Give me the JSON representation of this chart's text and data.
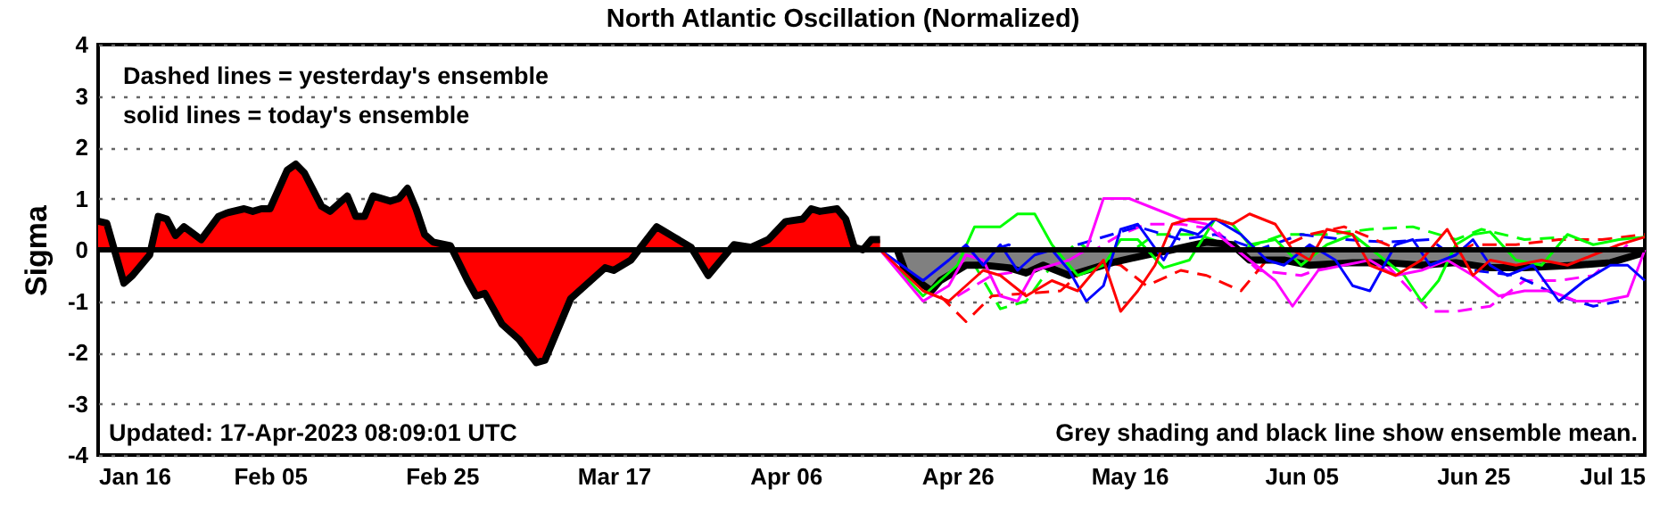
{
  "chart_data": {
    "type": "area",
    "title": "North Atlantic Oscillation (Normalized)",
    "ylabel": "Sigma",
    "xlim": [
      "--01-16",
      "--07-15"
    ],
    "xticks": [
      {
        "value": "--01-16",
        "label": "Jan 16"
      },
      {
        "value": "--02-05",
        "label": "Feb 05"
      },
      {
        "value": "--02-25",
        "label": "Feb 25"
      },
      {
        "value": "--03-17",
        "label": "Mar 17"
      },
      {
        "value": "--04-06",
        "label": "Apr 06"
      },
      {
        "value": "--04-26",
        "label": "Apr 26"
      },
      {
        "value": "--05-16",
        "label": "May 16"
      },
      {
        "value": "--06-05",
        "label": "Jun 05"
      },
      {
        "value": "--06-25",
        "label": "Jun 25"
      },
      {
        "value": "--07-15",
        "label": "Jul 15"
      }
    ],
    "ylim": [
      -4,
      4
    ],
    "yticks": [
      -4,
      -3,
      -2,
      -1,
      0,
      1,
      2,
      3,
      4
    ],
    "grid": "y",
    "ref_lines": [
      {
        "axis": "y",
        "value": 0,
        "color": "#000000"
      }
    ],
    "annotations": [
      "Dashed lines = yesterday's ensemble",
      "solid lines = today's ensemble",
      "Updated: 17-Apr-2023 08:09:01 UTC",
      "Grey shading and black line show ensemble mean."
    ],
    "series": [
      {
        "type": "area",
        "color": "#ff0000",
        "x": [
          "--01-16",
          "--01-17",
          "--01-19",
          "--01-20",
          "--01-22",
          "--01-23",
          "--01-24",
          "--01-25",
          "--01-26",
          "--01-28",
          "--01-30",
          "--01-31",
          "--02-02",
          "--02-03",
          "--02-04",
          "--02-05",
          "--02-07",
          "--02-08",
          "--02-09",
          "--02-11",
          "--02-12",
          "--02-14",
          "--02-15",
          "--02-16",
          "--02-17",
          "--02-19",
          "--02-20",
          "--02-21",
          "--02-22",
          "--02-23",
          "--02-24",
          "--02-26",
          "--02-28",
          "--03-01",
          "--03-02",
          "--03-04",
          "--03-06",
          "--03-08",
          "--03-09",
          "--03-12",
          "--03-14",
          "--03-16",
          "--03-17",
          "--03-19",
          "--03-22",
          "--03-24",
          "--03-26",
          "--03-28",
          "--03-31",
          "--04-02",
          "--04-04",
          "--04-06",
          "--04-08",
          "--04-09",
          "--04-10",
          "--04-12",
          "--04-13",
          "--04-14",
          "--04-15",
          "--04-16",
          "--04-17"
        ],
        "values": [
          0.56,
          0.52,
          -0.65,
          -0.5,
          -0.1,
          0.65,
          0.6,
          0.28,
          0.45,
          0.2,
          0.65,
          0.72,
          0.8,
          0.75,
          0.8,
          0.8,
          1.55,
          1.67,
          1.5,
          0.85,
          0.75,
          1.05,
          0.65,
          0.65,
          1.05,
          0.95,
          1.0,
          1.2,
          0.8,
          0.3,
          0.15,
          0.08,
          -0.6,
          -0.9,
          -0.85,
          -1.45,
          -1.75,
          -2.2,
          -2.15,
          -0.95,
          -0.65,
          -0.35,
          -0.4,
          -0.2,
          0.45,
          0.25,
          0.05,
          -0.5,
          0.1,
          0.05,
          0.2,
          0.55,
          0.6,
          0.8,
          0.75,
          0.8,
          0.6,
          0.05,
          0.0,
          0.2,
          0.2
        ]
      },
      {
        "type": "line",
        "color": "#00ff00",
        "line_style": "dashed",
        "x": [
          "--04-25",
          "--04-28",
          "--05-01",
          "--05-04",
          "--05-07",
          "--05-10",
          "--05-14",
          "--05-19",
          "--05-24",
          "--05-29",
          "--06-03",
          "--06-08",
          "--06-13",
          "--06-18",
          "--06-23",
          "--06-26",
          "--07-01",
          "--07-06"
        ],
        "values": [
          -0.4,
          -0.3,
          -1.15,
          -1.0,
          -0.3,
          0.15,
          -0.3,
          0.3,
          0.3,
          0.0,
          0.3,
          0.3,
          0.4,
          0.45,
          0.2,
          0.4,
          0.2,
          0.25
        ]
      },
      {
        "type": "line",
        "color": "#ff00ff",
        "line_style": "dashed",
        "x": [
          "--04-26",
          "--04-30",
          "--05-04",
          "--05-08",
          "--05-12",
          "--05-15",
          "--05-18",
          "--05-22",
          "--05-26",
          "--05-31",
          "--06-05",
          "--06-10",
          "--06-15",
          "--06-20",
          "--06-23",
          "--06-27",
          "--07-01",
          "--07-05",
          "--07-09",
          "--07-13"
        ],
        "values": [
          -0.9,
          -0.5,
          -0.4,
          -0.1,
          0.0,
          0.3,
          0.5,
          0.5,
          0.4,
          -0.4,
          -0.5,
          -0.2,
          -0.3,
          -1.2,
          -1.2,
          -1.1,
          -0.6,
          -0.6,
          -0.5,
          0.1
        ]
      },
      {
        "type": "line",
        "color": "#0000ff",
        "line_style": "dashed",
        "x": [
          "--04-28",
          "--05-02",
          "--05-06",
          "--05-10",
          "--05-14",
          "--05-17",
          "--05-22",
          "--05-26",
          "--05-31",
          "--06-05",
          "--06-10",
          "--06-15",
          "--06-20",
          "--06-25",
          "--06-30",
          "--07-05",
          "--07-09",
          "--07-12"
        ],
        "values": [
          -0.1,
          0.1,
          -0.3,
          0.1,
          0.3,
          0.45,
          0.2,
          0.3,
          0.0,
          0.3,
          0.2,
          0.15,
          0.2,
          -0.4,
          -0.5,
          -0.9,
          -1.1,
          -1.0
        ]
      },
      {
        "type": "line",
        "color": "#ff0000",
        "line_style": "dashed",
        "x": [
          "--04-24",
          "--04-27",
          "--04-30",
          "--05-04",
          "--05-08",
          "--05-12",
          "--05-15",
          "--05-18",
          "--05-22",
          "--05-25",
          "--05-29",
          "--06-02",
          "--06-06",
          "--06-10",
          "--06-15",
          "--06-20",
          "--06-25",
          "--06-30",
          "--07-05",
          "--07-10",
          "--07-15"
        ],
        "values": [
          -0.9,
          -1.4,
          -0.9,
          -0.85,
          -0.8,
          -0.2,
          -0.3,
          -0.7,
          -0.4,
          -0.5,
          -0.8,
          0.0,
          0.3,
          0.45,
          0.1,
          -0.3,
          0.1,
          0.1,
          0.2,
          0.2,
          0.3
        ]
      },
      {
        "type": "area",
        "color": "#808080",
        "x": [
          "--04-19",
          "--04-20",
          "--04-23",
          "--04-24",
          "--04-27",
          "--04-29",
          "--05-02",
          "--05-04",
          "--05-06",
          "--05-09",
          "--05-12",
          "--05-14",
          "--05-18",
          "--05-21",
          "--05-25",
          "--05-28",
          "--05-30",
          "--06-03",
          "--06-06",
          "--06-11",
          "--06-15",
          "--06-19",
          "--06-23",
          "--06-27",
          "--07-01",
          "--07-07",
          "--07-11",
          "--07-15"
        ],
        "values": [
          0.0,
          -0.45,
          -0.8,
          -0.6,
          -0.3,
          -0.3,
          -0.35,
          -0.45,
          -0.3,
          -0.5,
          -0.35,
          -0.25,
          -0.1,
          0.0,
          0.15,
          0.1,
          -0.2,
          -0.2,
          -0.3,
          -0.25,
          -0.25,
          -0.3,
          -0.25,
          -0.35,
          -0.35,
          -0.3,
          -0.25,
          -0.05
        ]
      },
      {
        "type": "line",
        "color": "#00ff00",
        "x": [
          "--04-17",
          "--04-22",
          "--04-26",
          "--04-28",
          "--05-01",
          "--05-03",
          "--05-05",
          "--05-07",
          "--05-10",
          "--05-13",
          "--05-15",
          "--05-17",
          "--05-20",
          "--05-23",
          "--05-26",
          "--05-28",
          "--05-30",
          "--06-02",
          "--06-05",
          "--06-08",
          "--06-11",
          "--06-14",
          "--06-17",
          "--06-19",
          "--06-21",
          "--06-23",
          "--06-25",
          "--06-27",
          "--06-30",
          "--07-03",
          "--07-06",
          "--07-09",
          "--07-12",
          "--07-15"
        ],
        "values": [
          0,
          -0.9,
          -0.3,
          0.45,
          0.45,
          0.7,
          0.7,
          0.1,
          -0.5,
          -0.3,
          0.2,
          0.2,
          -0.35,
          -0.2,
          0.6,
          0.5,
          0.1,
          0.2,
          -0.3,
          0.1,
          0.3,
          -0.1,
          -0.5,
          -1.0,
          -0.6,
          0.1,
          0.3,
          0.35,
          -0.2,
          -0.3,
          0.3,
          0.1,
          0.2,
          0.25
        ]
      },
      {
        "type": "line",
        "color": "#ff00ff",
        "x": [
          "--04-17",
          "--04-22",
          "--04-25",
          "--04-27",
          "--04-29",
          "--05-01",
          "--05-03",
          "--05-05",
          "--05-07",
          "--05-09",
          "--05-11",
          "--05-13",
          "--05-16",
          "--05-19",
          "--05-22",
          "--05-25",
          "--05-27",
          "--05-30",
          "--06-02",
          "--06-04",
          "--06-07",
          "--06-10",
          "--06-13",
          "--06-16",
          "--06-19",
          "--06-22",
          "--06-25",
          "--06-28",
          "--07-01",
          "--07-04",
          "--07-07",
          "--07-10",
          "--07-13",
          "--07-15"
        ],
        "values": [
          0,
          -1.0,
          -0.7,
          -0.1,
          -0.2,
          -0.9,
          -1.0,
          -0.4,
          -0.3,
          -0.2,
          0.0,
          1.0,
          1.0,
          0.8,
          0.6,
          0.5,
          0.2,
          -0.2,
          -0.6,
          -1.1,
          -0.4,
          -0.3,
          -0.2,
          -0.5,
          -0.4,
          -0.2,
          -0.5,
          -0.9,
          -0.8,
          -0.8,
          -1.0,
          -1.0,
          -0.9,
          0.0
        ]
      },
      {
        "type": "line",
        "color": "#0000ff",
        "x": [
          "--04-17",
          "--04-22",
          "--04-25",
          "--04-27",
          "--04-29",
          "--05-01",
          "--05-03",
          "--05-05",
          "--05-07",
          "--05-09",
          "--05-11",
          "--05-13",
          "--05-15",
          "--05-17",
          "--05-20",
          "--05-22",
          "--05-24",
          "--05-26",
          "--05-29",
          "--06-01",
          "--06-03",
          "--06-06",
          "--06-09",
          "--06-11",
          "--06-13",
          "--06-16",
          "--06-18",
          "--06-20",
          "--06-23",
          "--06-25",
          "--06-27",
          "--06-29",
          "--07-02",
          "--07-05",
          "--07-08",
          "--07-11",
          "--07-13",
          "--07-15"
        ],
        "values": [
          0,
          -0.6,
          -0.2,
          0.1,
          -0.3,
          0.1,
          -0.4,
          -0.1,
          0.0,
          -0.4,
          -1.0,
          -0.7,
          0.4,
          0.5,
          -0.2,
          0.4,
          0.3,
          0.6,
          0.3,
          -0.2,
          -0.3,
          0.1,
          -0.2,
          -0.7,
          -0.8,
          0.1,
          0.2,
          -0.3,
          -0.1,
          0.2,
          -0.3,
          -0.5,
          -0.3,
          -1.0,
          -0.6,
          -0.3,
          -0.3,
          -0.6
        ]
      },
      {
        "type": "line",
        "color": "#ff0000",
        "x": [
          "--04-17",
          "--04-22",
          "--04-25",
          "--04-27",
          "--04-29",
          "--05-01",
          "--05-04",
          "--05-07",
          "--05-10",
          "--05-13",
          "--05-15",
          "--05-17",
          "--05-19",
          "--05-21",
          "--05-23",
          "--05-26",
          "--05-28",
          "--05-30",
          "--06-02",
          "--06-04",
          "--06-06",
          "--06-08",
          "--06-11",
          "--06-13",
          "--06-16",
          "--06-19",
          "--06-22",
          "--06-25",
          "--06-27",
          "--06-30",
          "--07-03",
          "--07-06",
          "--07-09",
          "--07-12",
          "--07-15"
        ],
        "values": [
          0,
          -0.8,
          -1.0,
          -0.7,
          -0.4,
          -0.5,
          -0.9,
          -0.6,
          -0.8,
          -0.2,
          -1.2,
          -0.8,
          -0.3,
          0.5,
          0.6,
          0.6,
          0.5,
          0.7,
          0.5,
          0.0,
          -0.2,
          0.4,
          0.3,
          -0.3,
          -0.5,
          -0.2,
          0.4,
          -0.5,
          -0.2,
          -0.3,
          -0.2,
          -0.3,
          -0.1,
          0.1,
          0.25
        ]
      }
    ]
  }
}
